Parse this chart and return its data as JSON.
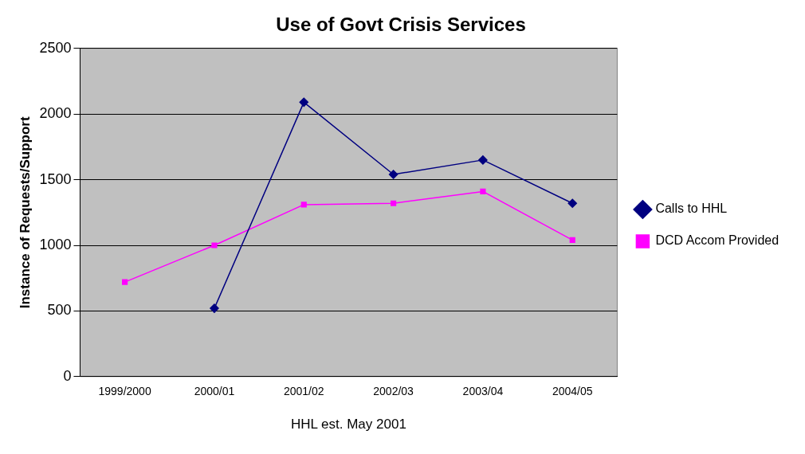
{
  "chart_data": {
    "type": "line",
    "title": "Use of Govt Crisis Services",
    "ylabel": "Instance of Requests/Support",
    "xlabel": "HHL est. May 2001",
    "categories": [
      "1999/2000",
      "2000/01",
      "2001/02",
      "2002/03",
      "2003/04",
      "2004/05"
    ],
    "series": [
      {
        "name": "Calls to HHL",
        "color": "#000080",
        "marker": "diamond",
        "values": [
          null,
          520,
          2090,
          1540,
          1650,
          1320
        ]
      },
      {
        "name": "DCD Accom Provided",
        "color": "#ff00ff",
        "marker": "square",
        "values": [
          720,
          1000,
          1310,
          1320,
          1410,
          1040
        ]
      }
    ],
    "ylim": [
      0,
      2500
    ],
    "yticks": [
      0,
      500,
      1000,
      1500,
      2000,
      2500
    ],
    "grid": "y",
    "legend": "right"
  }
}
